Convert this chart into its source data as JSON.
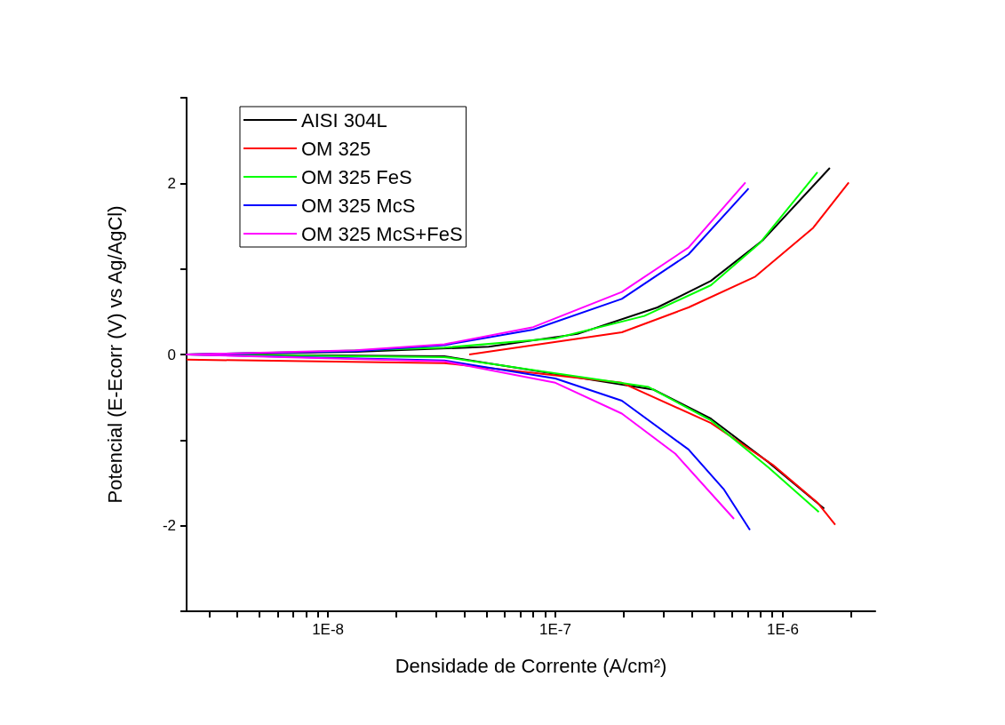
{
  "chart_data": {
    "type": "line",
    "xlabel": "Densidade de Corrente (A/cm²)",
    "ylabel": "Potencial (E-Ecorr (V) vs Ag/AgCl)",
    "log": "x",
    "legend": "top left",
    "grid": false,
    "marker": "none",
    "line_style": "solid",
    "xlim": [
      2.39e-09,
      2.55e-06
    ],
    "xticks": [
      {
        "value": 3e-09,
        "label": null
      },
      {
        "value": 4e-09,
        "label": null
      },
      {
        "value": 5e-09,
        "label": null
      },
      {
        "value": 6e-09,
        "label": null
      },
      {
        "value": 7e-09,
        "label": null
      },
      {
        "value": 8e-09,
        "label": null
      },
      {
        "value": 9e-09,
        "label": null
      },
      {
        "value": 1e-08,
        "label": "1E-8"
      },
      {
        "value": 2e-08,
        "label": null
      },
      {
        "value": 3e-08,
        "label": null
      },
      {
        "value": 4e-08,
        "label": null
      },
      {
        "value": 5e-08,
        "label": null
      },
      {
        "value": 6e-08,
        "label": null
      },
      {
        "value": 7e-08,
        "label": null
      },
      {
        "value": 8e-08,
        "label": null
      },
      {
        "value": 9e-08,
        "label": null
      },
      {
        "value": 1e-07,
        "label": "1E-7"
      },
      {
        "value": 2e-07,
        "label": null
      },
      {
        "value": 3e-07,
        "label": null
      },
      {
        "value": 4e-07,
        "label": null
      },
      {
        "value": 5e-07,
        "label": null
      },
      {
        "value": 6e-07,
        "label": null
      },
      {
        "value": 7e-07,
        "label": null
      },
      {
        "value": 8e-07,
        "label": null
      },
      {
        "value": 9e-07,
        "label": null
      },
      {
        "value": 1e-06,
        "label": "1E-6"
      },
      {
        "value": 2e-06,
        "label": null
      }
    ],
    "ylim": [
      -3,
      3
    ],
    "yticks": [
      {
        "value": -3,
        "label": null
      },
      -2,
      {
        "value": -1,
        "label": null
      },
      0,
      {
        "value": 1,
        "label": null
      },
      2,
      {
        "value": 3,
        "label": null
      }
    ],
    "series": [
      {
        "name": "AISI 304L",
        "color": "#000000",
        "x": [
          1.61e-06,
          8.2e-07,
          4.83e-07,
          2.81e-07,
          1.25e-07,
          5.09e-08,
          1.32e-08,
          2.39e-09,
          3.25e-08,
          2.7e-07,
          4.83e-07,
          8.66e-07,
          1.52e-06
        ],
        "values": [
          2.18,
          1.34,
          0.86,
          0.55,
          0.24,
          0.09,
          0.03,
          0,
          -0.02,
          -0.41,
          -0.75,
          -1.26,
          -1.8
        ]
      },
      {
        "name": "OM 325",
        "color": "#ff0000",
        "x": [
          1.95e-06,
          1.36e-06,
          7.57e-07,
          3.85e-07,
          1.96e-07,
          7.99e-08,
          4.18e-08,
          null,
          2.39e-09,
          3.25e-08,
          1.96e-07,
          4.83e-07,
          9.05e-07,
          1.42e-06,
          1.7e-06
        ],
        "values": [
          2.01,
          1.48,
          0.91,
          0.55,
          0.26,
          0.11,
          0,
          null,
          -0.06,
          -0.1,
          -0.33,
          -0.8,
          -1.29,
          -1.73,
          -1.99
        ]
      },
      {
        "name": "OM 325 FeS",
        "color": "#00ff00",
        "x": [
          1.42e-06,
          7.91e-07,
          4.83e-07,
          2.46e-07,
          1e-07,
          3.25e-08,
          8.4e-09,
          2.39e-09,
          3.25e-08,
          2.57e-07,
          4.83e-07,
          8.66e-07,
          1.44e-06
        ],
        "values": [
          2.13,
          1.3,
          0.81,
          0.45,
          0.19,
          0.08,
          0.03,
          0,
          -0.03,
          -0.38,
          -0.77,
          -1.32,
          -1.84
        ]
      },
      {
        "name": "OM 325 McS",
        "color": "#0000ff",
        "x": [
          7.07e-07,
          3.85e-07,
          1.96e-07,
          7.99e-08,
          3.25e-08,
          1.32e-08,
          2.39e-09,
          3.25e-08,
          1e-07,
          1.96e-07,
          3.85e-07,
          5.52e-07,
          7.17e-07
        ],
        "values": [
          1.94,
          1.17,
          0.65,
          0.29,
          0.11,
          0.04,
          0,
          -0.07,
          -0.28,
          -0.54,
          -1.11,
          -1.58,
          -2.05
        ]
      },
      {
        "name": "OM 325 McS+FeS",
        "color": "#ff00ff",
        "x": [
          6.85e-07,
          3.85e-07,
          1.96e-07,
          7.99e-08,
          3.25e-08,
          1.32e-08,
          2.39e-09,
          3.25e-08,
          1e-07,
          1.96e-07,
          3.37e-07,
          6.1e-07
        ],
        "values": [
          2.01,
          1.25,
          0.73,
          0.32,
          0.12,
          0.05,
          0,
          -0.08,
          -0.33,
          -0.69,
          -1.16,
          -1.92
        ]
      }
    ]
  }
}
